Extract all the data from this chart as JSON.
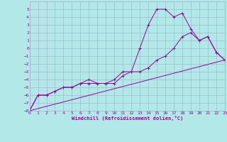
{
  "xlabel": "Windchill (Refroidissement éolien,°C)",
  "background_color": "#b3e8e8",
  "grid_color": "#aaaacc",
  "line_color": "#990099",
  "xlim": [
    0,
    23
  ],
  "ylim": [
    -8,
    6
  ],
  "xticks": [
    0,
    1,
    2,
    3,
    4,
    5,
    6,
    7,
    8,
    9,
    10,
    11,
    12,
    13,
    14,
    15,
    16,
    17,
    18,
    19,
    20,
    21,
    22,
    23
  ],
  "yticks": [
    -8,
    -7,
    -6,
    -5,
    -4,
    -3,
    -2,
    -1,
    0,
    1,
    2,
    3,
    4,
    5
  ],
  "line1_x": [
    0,
    1,
    2,
    3,
    4,
    5,
    6,
    7,
    8,
    9,
    10,
    11,
    12,
    13,
    14,
    15,
    16,
    17,
    18,
    19,
    20,
    21,
    22,
    23
  ],
  "line1_y": [
    -8,
    -6,
    -6,
    -5.5,
    -5,
    -5,
    -4.5,
    -4.5,
    -4.5,
    -4.5,
    -4,
    -3,
    -3,
    0,
    3,
    5,
    5,
    4,
    4.5,
    2.5,
    1,
    1.5,
    -0.5,
    -1.5
  ],
  "line2_x": [
    0,
    1,
    2,
    3,
    4,
    5,
    6,
    7,
    8,
    9,
    10,
    11,
    12,
    13,
    14,
    15,
    16,
    17,
    18,
    19,
    20,
    21,
    22,
    23
  ],
  "line2_y": [
    -8,
    -6,
    -6,
    -5.5,
    -5,
    -5,
    -4.5,
    -4,
    -4.5,
    -4.5,
    -4.5,
    -3.5,
    -3,
    -3,
    -2.5,
    -1.5,
    -1,
    0,
    1.5,
    2,
    1,
    1.5,
    -0.5,
    -1.5
  ],
  "line3_x": [
    0,
    23
  ],
  "line3_y": [
    -8,
    -1.5
  ],
  "figsize": [
    3.2,
    2.0
  ],
  "dpi": 100,
  "tick_fontsize": 4.5,
  "xlabel_fontsize": 5.0,
  "lw": 0.7,
  "ms": 2.5
}
